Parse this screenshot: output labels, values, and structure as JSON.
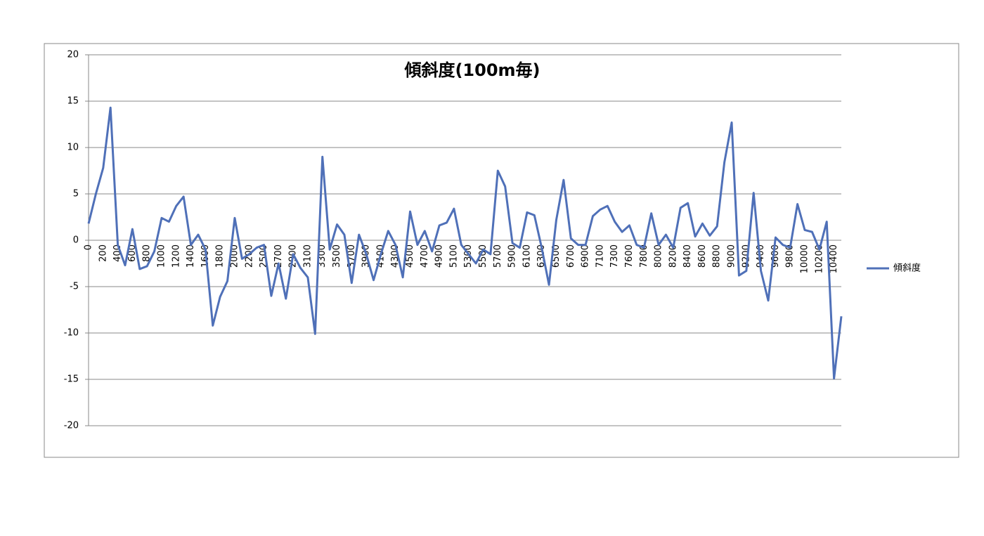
{
  "chart_data": {
    "type": "line",
    "title": "傾斜度(100m毎)",
    "categories": [
      "0",
      null,
      "200",
      null,
      "400",
      null,
      "600",
      null,
      "800",
      null,
      "1000",
      null,
      "1200",
      null,
      "1400",
      null,
      "1600",
      null,
      "1800",
      null,
      "2000",
      null,
      "2200",
      null,
      "2500",
      null,
      "2700",
      null,
      "2900",
      null,
      "3100",
      null,
      "3300",
      null,
      "3500",
      null,
      "3700",
      null,
      "3900",
      null,
      "4100",
      null,
      "4300",
      null,
      "4500",
      null,
      "4700",
      null,
      "4900",
      null,
      "5100",
      null,
      "5300",
      null,
      "5500",
      null,
      "5700",
      null,
      "5900",
      null,
      "6100",
      null,
      "6300",
      null,
      "6500",
      null,
      "6700",
      null,
      "6900",
      null,
      "7100",
      null,
      "7300",
      null,
      "7600",
      null,
      "7800",
      null,
      "8000",
      null,
      "8200",
      null,
      "8400",
      null,
      "8600",
      null,
      "8800",
      null,
      "9000",
      null,
      "9200",
      null,
      "9400",
      null,
      "9600",
      null,
      "9800",
      null,
      "10000",
      null,
      "10200",
      null,
      "10400",
      null
    ],
    "series": [
      {
        "name": "傾斜度",
        "color": "#4f70b8",
        "values": [
          1.8,
          5.0,
          7.8,
          14.3,
          -0.5,
          -2.7,
          1.2,
          -3.1,
          -2.8,
          -1.2,
          2.4,
          2.0,
          3.7,
          4.7,
          -0.5,
          0.6,
          -1.0,
          -9.2,
          -6.1,
          -4.4,
          2.4,
          -2.0,
          -1.5,
          -0.8,
          -0.5,
          -6.0,
          -2.5,
          -6.3,
          -1.5,
          -3.0,
          -4.0,
          -10.1,
          9.0,
          -1.0,
          1.7,
          0.6,
          -4.6,
          0.6,
          -1.5,
          -4.3,
          -1.5,
          1.0,
          -0.5,
          -4.0,
          3.1,
          -0.5,
          1.0,
          -1.2,
          1.6,
          1.9,
          3.4,
          -0.5,
          -1.5,
          -2.5,
          -1.0,
          -1.5,
          7.5,
          5.8,
          -0.3,
          -0.8,
          3.0,
          2.7,
          -0.8,
          -4.8,
          2.2,
          6.5,
          0.2,
          -0.5,
          -0.5,
          2.6,
          3.3,
          3.7,
          2.0,
          0.9,
          1.6,
          -0.5,
          -0.8,
          2.9,
          -0.5,
          0.6,
          -0.8,
          3.5,
          4.0,
          0.4,
          1.8,
          0.5,
          1.5,
          8.4,
          12.7,
          -3.8,
          -3.3,
          5.1,
          -3.3,
          -6.5,
          0.3,
          -0.5,
          -0.8,
          3.9,
          1.1,
          0.9,
          -1.0,
          2.0,
          -14.9,
          -8.2
        ]
      }
    ],
    "ylim": [
      -20,
      20
    ],
    "yticks": [
      -20,
      -15,
      -10,
      -5,
      0,
      5,
      10,
      15,
      20
    ],
    "grid": true,
    "legend": "right"
  }
}
